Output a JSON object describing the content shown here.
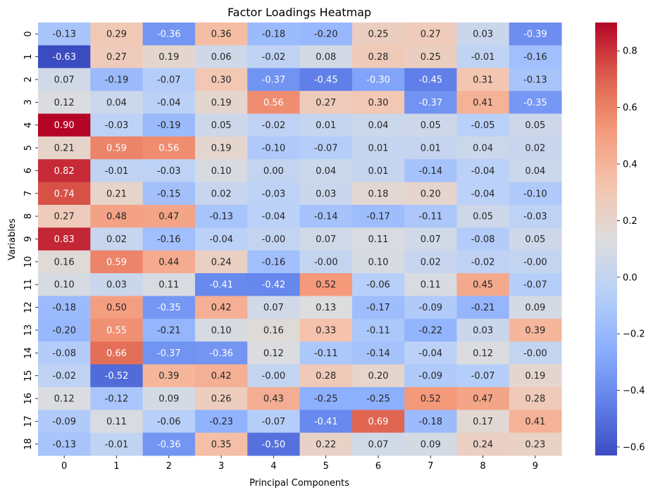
{
  "chart_data": {
    "type": "heatmap",
    "title": "Factor Loadings Heatmap",
    "xlabel": "Principal Components",
    "ylabel": "Variables",
    "columns": [
      "0",
      "1",
      "2",
      "3",
      "4",
      "5",
      "6",
      "7",
      "8",
      "9"
    ],
    "rows": [
      "0",
      "1",
      "2",
      "3",
      "4",
      "5",
      "6",
      "7",
      "8",
      "9",
      "10",
      "11",
      "12",
      "13",
      "14",
      "15",
      "16",
      "17",
      "18"
    ],
    "values": [
      [
        -0.13,
        0.29,
        -0.36,
        0.36,
        -0.18,
        -0.2,
        0.25,
        0.27,
        0.03,
        -0.39
      ],
      [
        -0.63,
        0.27,
        0.19,
        0.06,
        -0.02,
        0.08,
        0.28,
        0.25,
        -0.01,
        -0.16
      ],
      [
        0.07,
        -0.19,
        -0.07,
        0.3,
        -0.37,
        -0.45,
        -0.3,
        -0.45,
        0.31,
        -0.13
      ],
      [
        0.12,
        0.04,
        -0.04,
        0.19,
        0.56,
        0.27,
        0.3,
        -0.37,
        0.41,
        -0.35
      ],
      [
        0.9,
        -0.03,
        -0.19,
        0.05,
        -0.02,
        0.01,
        0.04,
        0.05,
        -0.05,
        0.05
      ],
      [
        0.21,
        0.59,
        0.56,
        0.19,
        -0.1,
        -0.07,
        0.01,
        0.01,
        0.04,
        0.02
      ],
      [
        0.82,
        -0.01,
        -0.03,
        0.1,
        0.0,
        0.04,
        0.01,
        -0.14,
        -0.04,
        0.04
      ],
      [
        0.74,
        0.21,
        -0.15,
        0.02,
        -0.03,
        0.03,
        0.18,
        0.2,
        -0.04,
        -0.1
      ],
      [
        0.27,
        0.48,
        0.47,
        -0.13,
        -0.04,
        -0.14,
        -0.17,
        -0.11,
        0.05,
        -0.03
      ],
      [
        0.83,
        0.02,
        -0.16,
        -0.04,
        -0.0,
        0.07,
        0.11,
        0.07,
        -0.08,
        0.05
      ],
      [
        0.16,
        0.59,
        0.44,
        0.24,
        -0.16,
        -0.0,
        0.1,
        0.02,
        -0.02,
        -0.0
      ],
      [
        0.1,
        0.03,
        0.11,
        -0.41,
        -0.42,
        0.52,
        -0.06,
        0.11,
        0.45,
        -0.07
      ],
      [
        -0.18,
        0.5,
        -0.35,
        0.42,
        0.07,
        0.13,
        -0.17,
        -0.09,
        -0.21,
        0.09
      ],
      [
        -0.2,
        0.55,
        -0.21,
        0.1,
        0.16,
        0.33,
        -0.11,
        -0.22,
        0.03,
        0.39
      ],
      [
        -0.08,
        0.66,
        -0.37,
        -0.36,
        0.12,
        -0.11,
        -0.14,
        -0.04,
        0.12,
        -0.0
      ],
      [
        -0.02,
        -0.52,
        0.39,
        0.42,
        -0.0,
        0.28,
        0.2,
        -0.09,
        -0.07,
        0.19
      ],
      [
        0.12,
        -0.12,
        0.09,
        0.26,
        0.43,
        -0.25,
        -0.25,
        0.52,
        0.47,
        0.28
      ],
      [
        -0.09,
        0.11,
        -0.06,
        -0.23,
        -0.07,
        -0.41,
        0.69,
        -0.18,
        0.17,
        0.41
      ],
      [
        -0.13,
        -0.01,
        -0.36,
        0.35,
        -0.5,
        0.22,
        0.07,
        0.09,
        0.24,
        0.23
      ]
    ],
    "cell_labels": [
      [
        "-0.13",
        "0.29",
        "-0.36",
        "0.36",
        "-0.18",
        "-0.20",
        "0.25",
        "0.27",
        "0.03",
        "-0.39"
      ],
      [
        "-0.63",
        "0.27",
        "0.19",
        "0.06",
        "-0.02",
        "0.08",
        "0.28",
        "0.25",
        "-0.01",
        "-0.16"
      ],
      [
        "0.07",
        "-0.19",
        "-0.07",
        "0.30",
        "-0.37",
        "-0.45",
        "-0.30",
        "-0.45",
        "0.31",
        "-0.13"
      ],
      [
        "0.12",
        "0.04",
        "-0.04",
        "0.19",
        "0.56",
        "0.27",
        "0.30",
        "-0.37",
        "0.41",
        "-0.35"
      ],
      [
        "0.90",
        "-0.03",
        "-0.19",
        "0.05",
        "-0.02",
        "0.01",
        "0.04",
        "0.05",
        "-0.05",
        "0.05"
      ],
      [
        "0.21",
        "0.59",
        "0.56",
        "0.19",
        "-0.10",
        "-0.07",
        "0.01",
        "0.01",
        "0.04",
        "0.02"
      ],
      [
        "0.82",
        "-0.01",
        "-0.03",
        "0.10",
        "0.00",
        "0.04",
        "0.01",
        "-0.14",
        "-0.04",
        "0.04"
      ],
      [
        "0.74",
        "0.21",
        "-0.15",
        "0.02",
        "-0.03",
        "0.03",
        "0.18",
        "0.20",
        "-0.04",
        "-0.10"
      ],
      [
        "0.27",
        "0.48",
        "0.47",
        "-0.13",
        "-0.04",
        "-0.14",
        "-0.17",
        "-0.11",
        "0.05",
        "-0.03"
      ],
      [
        "0.83",
        "0.02",
        "-0.16",
        "-0.04",
        "-0.00",
        "0.07",
        "0.11",
        "0.07",
        "-0.08",
        "0.05"
      ],
      [
        "0.16",
        "0.59",
        "0.44",
        "0.24",
        "-0.16",
        "-0.00",
        "0.10",
        "0.02",
        "-0.02",
        "-0.00"
      ],
      [
        "0.10",
        "0.03",
        "0.11",
        "-0.41",
        "-0.42",
        "0.52",
        "-0.06",
        "0.11",
        "0.45",
        "-0.07"
      ],
      [
        "-0.18",
        "0.50",
        "-0.35",
        "0.42",
        "0.07",
        "0.13",
        "-0.17",
        "-0.09",
        "-0.21",
        "0.09"
      ],
      [
        "-0.20",
        "0.55",
        "-0.21",
        "0.10",
        "0.16",
        "0.33",
        "-0.11",
        "-0.22",
        "0.03",
        "0.39"
      ],
      [
        "-0.08",
        "0.66",
        "-0.37",
        "-0.36",
        "0.12",
        "-0.11",
        "-0.14",
        "-0.04",
        "0.12",
        "-0.00"
      ],
      [
        "-0.02",
        "-0.52",
        "0.39",
        "0.42",
        "-0.00",
        "0.28",
        "0.20",
        "-0.09",
        "-0.07",
        "0.19"
      ],
      [
        "0.12",
        "-0.12",
        "0.09",
        "0.26",
        "0.43",
        "-0.25",
        "-0.25",
        "0.52",
        "0.47",
        "0.28"
      ],
      [
        "-0.09",
        "0.11",
        "-0.06",
        "-0.23",
        "-0.07",
        "-0.41",
        "0.69",
        "-0.18",
        "0.17",
        "0.41"
      ],
      [
        "-0.13",
        "-0.01",
        "-0.36",
        "0.35",
        "-0.50",
        "0.22",
        "0.07",
        "0.09",
        "0.24",
        "0.23"
      ]
    ],
    "colormap": "coolwarm",
    "color_range": [
      -0.63,
      0.9
    ],
    "colorbar_ticks": [
      {
        "value": 0.8,
        "label": "0.8"
      },
      {
        "value": 0.6,
        "label": "0.6"
      },
      {
        "value": 0.4,
        "label": "0.4"
      },
      {
        "value": 0.2,
        "label": "0.2"
      },
      {
        "value": 0.0,
        "label": "0.0"
      },
      {
        "value": -0.2,
        "label": "−0.2"
      },
      {
        "value": -0.4,
        "label": "−0.4"
      },
      {
        "value": -0.6,
        "label": "−0.6"
      }
    ],
    "colorbar_placement": "right",
    "grid": false
  }
}
